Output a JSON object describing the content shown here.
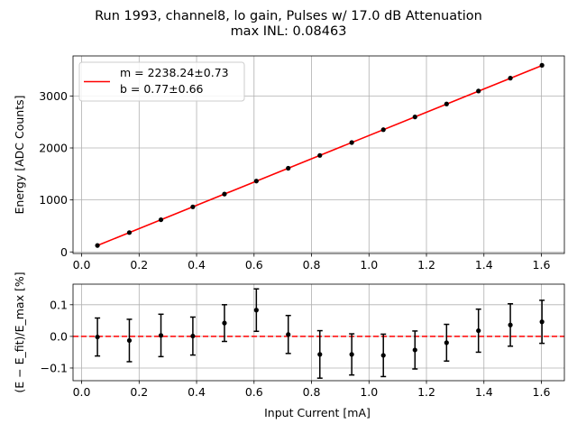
{
  "chart_data": [
    {
      "type": "scatter",
      "title_line1": "Run 1993, channel8, lo gain, Pulses w/ 17.0 dB Attenuation",
      "title_line2": "max INL: 0.08463",
      "xlabel": "",
      "ylabel": "Energy [ADC Counts]",
      "xlim": [
        -0.03,
        1.68
      ],
      "ylim": [
        -30,
        3770
      ],
      "xticks": [
        0.0,
        0.2,
        0.4,
        0.6,
        0.8,
        1.0,
        1.2,
        1.4,
        1.6
      ],
      "xtick_labels": [
        "0.0",
        "0.2",
        "0.4",
        "0.6",
        "0.8",
        "1.0",
        "1.2",
        "1.4",
        "1.6"
      ],
      "yticks": [
        0,
        1000,
        2000,
        3000
      ],
      "ytick_labels": [
        "0",
        "1000",
        "2000",
        "3000"
      ],
      "grid": true,
      "x": [
        0.055,
        0.166,
        0.276,
        0.387,
        0.497,
        0.608,
        0.719,
        0.829,
        0.94,
        1.05,
        1.16,
        1.27,
        1.381,
        1.492,
        1.602
      ],
      "y": [
        124,
        372,
        619,
        867,
        1113,
        1363,
        1610,
        1856,
        2104,
        2351,
        2597,
        2846,
        3095,
        3343,
        3590
      ],
      "fit": {
        "m": 2238.24,
        "b": 0.77,
        "color": "#ff0000",
        "x_range": [
          0.055,
          1.602
        ]
      },
      "legend": {
        "placement": "upper-left",
        "line1": "m = 2238.24±0.73",
        "line2": "b = 0.77±0.66"
      },
      "marker_color": "#000000"
    },
    {
      "type": "scatter",
      "xlabel": "Input Current [mA]",
      "ylabel": "(E − E_fit)/E_max [%]",
      "xlim": [
        -0.03,
        1.68
      ],
      "ylim": [
        -0.14,
        0.165
      ],
      "xticks": [
        0.0,
        0.2,
        0.4,
        0.6,
        0.8,
        1.0,
        1.2,
        1.4,
        1.6
      ],
      "xtick_labels": [
        "0.0",
        "0.2",
        "0.4",
        "0.6",
        "0.8",
        "1.0",
        "1.2",
        "1.4",
        "1.6"
      ],
      "yticks": [
        -0.1,
        0.0,
        0.1
      ],
      "ytick_labels": [
        "−0.1",
        "0.0",
        "0.1"
      ],
      "grid": true,
      "x": [
        0.055,
        0.166,
        0.276,
        0.387,
        0.497,
        0.608,
        0.719,
        0.829,
        0.94,
        1.05,
        1.16,
        1.27,
        1.381,
        1.492,
        1.602
      ],
      "y": [
        -0.002,
        -0.013,
        0.003,
        0.001,
        0.042,
        0.083,
        0.006,
        -0.057,
        -0.057,
        -0.06,
        -0.043,
        -0.02,
        0.018,
        0.036,
        0.046
      ],
      "yerr": [
        0.06,
        0.067,
        0.067,
        0.06,
        0.058,
        0.067,
        0.06,
        0.075,
        0.065,
        0.067,
        0.06,
        0.058,
        0.068,
        0.067,
        0.068
      ],
      "zero_line": {
        "y": 0.0,
        "color": "#ff0000",
        "style": "dashed"
      },
      "marker_color": "#000000"
    }
  ]
}
